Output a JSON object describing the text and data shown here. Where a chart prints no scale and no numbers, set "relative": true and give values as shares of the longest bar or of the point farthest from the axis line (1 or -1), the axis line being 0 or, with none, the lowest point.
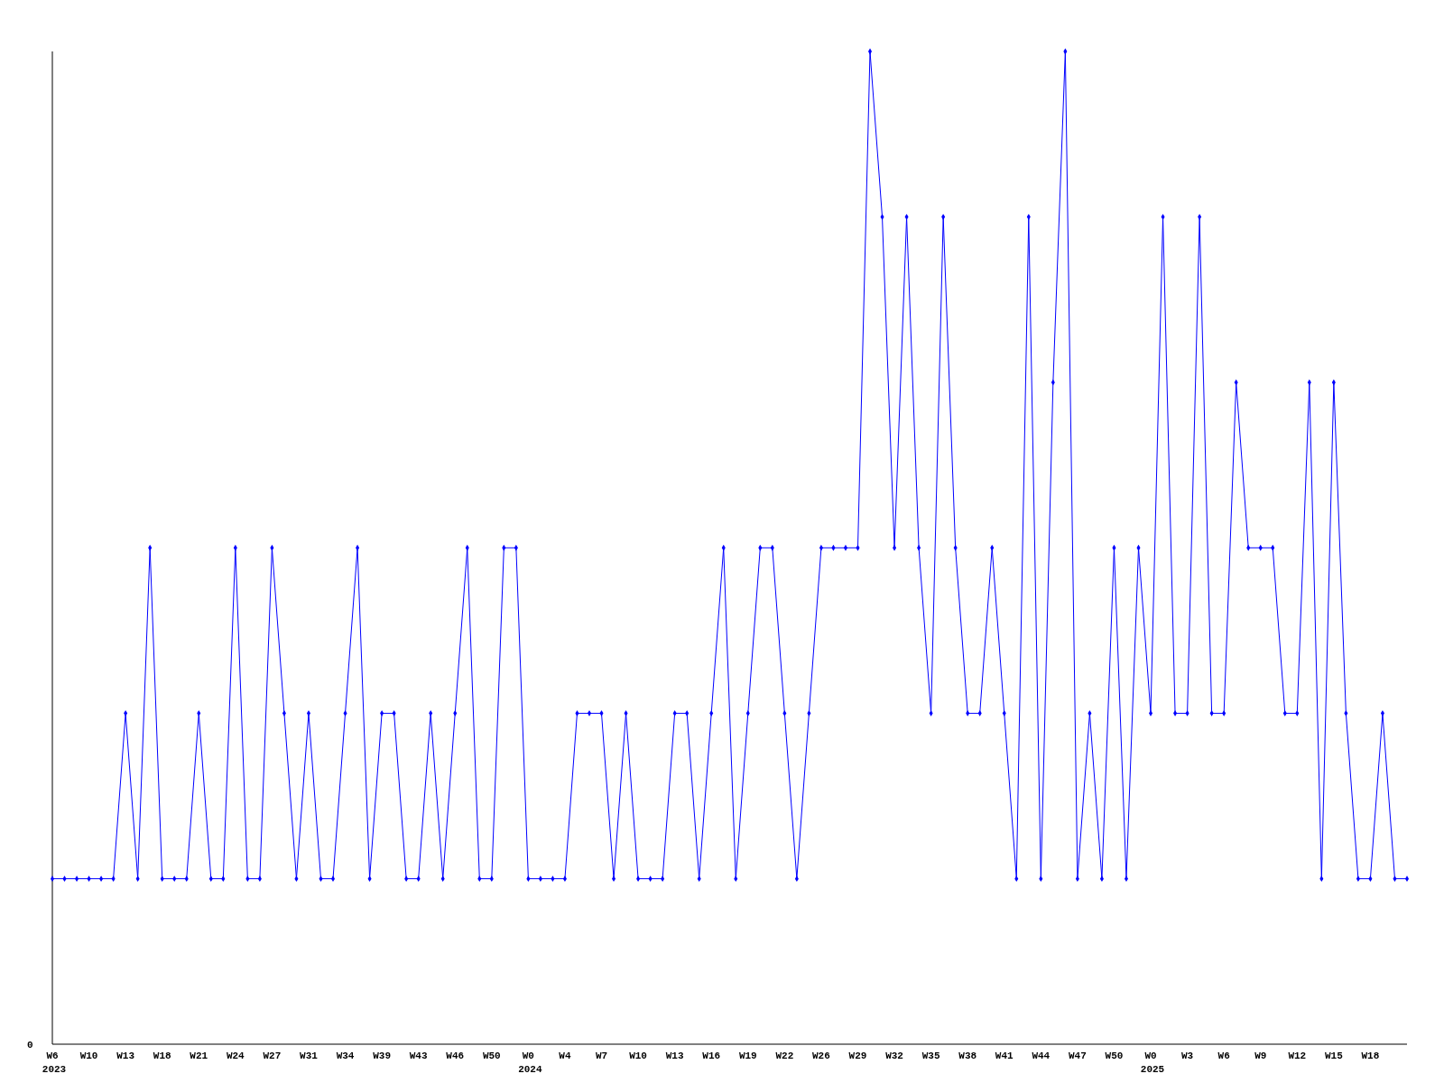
{
  "chart_data": {
    "type": "line",
    "relative": true,
    "marker": "diamond",
    "annotations": [
      "0"
    ],
    "categories": [
      "W6\n2023",
      null,
      null,
      "W10",
      null,
      null,
      "W13",
      null,
      null,
      "W18",
      null,
      null,
      "W21",
      null,
      null,
      "W24",
      null,
      null,
      "W27",
      null,
      null,
      "W31",
      null,
      null,
      "W34",
      null,
      null,
      "W39",
      null,
      null,
      "W43",
      null,
      null,
      "W46",
      null,
      null,
      "W50",
      null,
      null,
      "W0\n2024",
      null,
      null,
      "W4",
      null,
      null,
      "W7",
      null,
      null,
      "W10",
      null,
      null,
      "W13",
      null,
      null,
      "W16",
      null,
      null,
      "W19",
      null,
      null,
      "W22",
      null,
      null,
      "W26",
      null,
      null,
      "W29",
      null,
      null,
      "W32",
      null,
      null,
      "W35",
      null,
      null,
      "W38",
      null,
      null,
      "W41",
      null,
      null,
      "W44",
      null,
      null,
      "W47",
      null,
      null,
      "W50",
      null,
      null,
      "W0\n2025",
      null,
      null,
      "W3",
      null,
      null,
      "W6",
      null,
      null,
      "W9",
      null,
      null,
      "W12",
      null,
      null,
      "W15",
      null,
      null,
      "W18",
      null,
      null,
      null
    ],
    "series": [
      {
        "color": "#0000ff",
        "values": [
          0.1667,
          0.1667,
          0.1667,
          0.1667,
          0.1667,
          0.1667,
          0.3333,
          0.1667,
          0.5,
          0.1667,
          0.1667,
          0.1667,
          0.3333,
          0.1667,
          0.1667,
          0.5,
          0.1667,
          0.1667,
          0.5,
          0.3333,
          0.1667,
          0.3333,
          0.1667,
          0.1667,
          0.3333,
          0.5,
          0.1667,
          0.3333,
          0.3333,
          0.1667,
          0.1667,
          0.3333,
          0.1667,
          0.3333,
          0.5,
          0.1667,
          0.1667,
          0.5,
          0.5,
          0.1667,
          0.1667,
          0.1667,
          0.1667,
          0.3333,
          0.3333,
          0.3333,
          0.1667,
          0.3333,
          0.1667,
          0.1667,
          0.1667,
          0.3333,
          0.3333,
          0.1667,
          0.3333,
          0.5,
          0.1667,
          0.3333,
          0.5,
          0.5,
          0.3333,
          0.1667,
          0.3333,
          0.5,
          0.5,
          0.5,
          0.5,
          1,
          0.8333,
          0.5,
          0.8333,
          0.5,
          0.3333,
          0.8333,
          0.5,
          0.3333,
          0.3333,
          0.5,
          0.3333,
          0.1667,
          0.8333,
          0.1667,
          0.6667,
          1,
          0.1667,
          0.3333,
          0.1667,
          0.5,
          0.1667,
          0.5,
          0.3333,
          0.8333,
          0.3333,
          0.3333,
          0.8333,
          0.3333,
          0.3333,
          0.6667,
          0.5,
          0.5,
          0.5,
          0.3333,
          0.3333,
          0.6667,
          0.1667,
          0.6667,
          0.3333,
          0.1667,
          0.1667,
          0.3333,
          0.1667,
          0.1667
        ]
      }
    ]
  }
}
